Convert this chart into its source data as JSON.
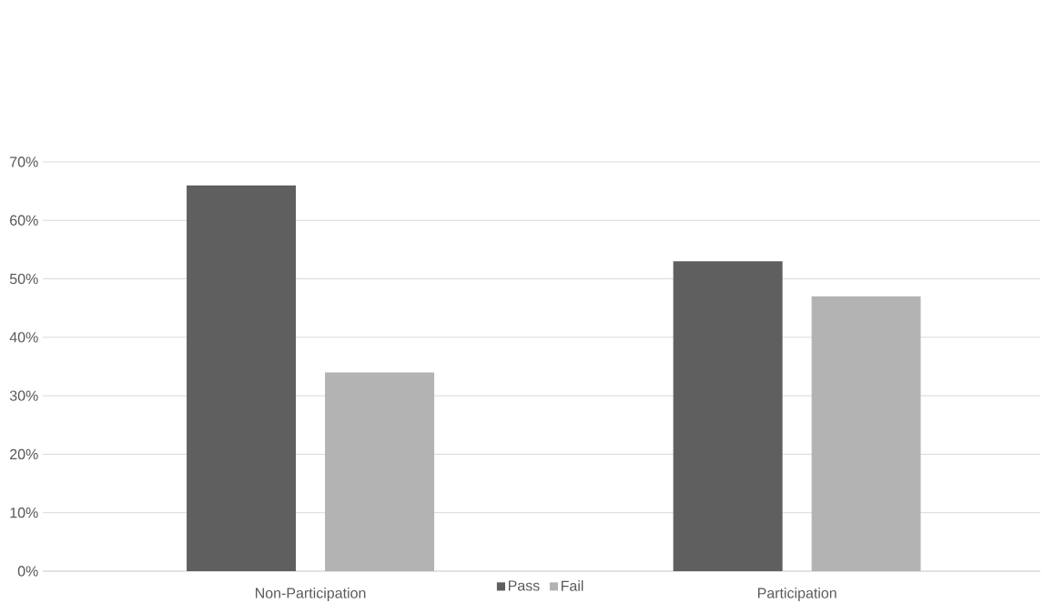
{
  "chart_data": {
    "type": "bar",
    "categories": [
      "Non-Participation",
      "Participation"
    ],
    "series": [
      {
        "name": "Pass",
        "color": "#5f5f5f",
        "values": [
          66,
          53
        ]
      },
      {
        "name": "Fail",
        "color": "#b3b3b3",
        "values": [
          34,
          47
        ]
      }
    ],
    "ylim": [
      0,
      70
    ],
    "yticks": [
      {
        "value": 0,
        "label": "0%"
      },
      {
        "value": 10,
        "label": "10%"
      },
      {
        "value": 20,
        "label": "20%"
      },
      {
        "value": 30,
        "label": "30%"
      },
      {
        "value": 40,
        "label": "40%"
      },
      {
        "value": 50,
        "label": "50%"
      },
      {
        "value": 60,
        "label": "60%"
      },
      {
        "value": 70,
        "label": "70%"
      }
    ],
    "grid": "y",
    "legend": "bottom"
  }
}
